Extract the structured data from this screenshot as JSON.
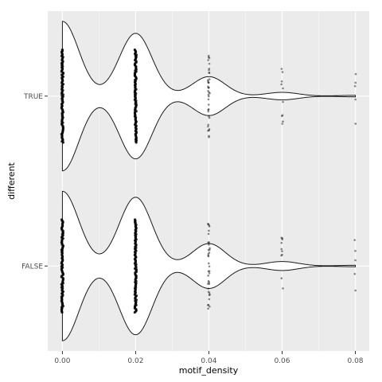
{
  "chart_data": {
    "type": "violin",
    "xlabel": "motif_density",
    "ylabel": "different",
    "xlim": [
      -0.004,
      0.0838
    ],
    "x_ticks": [
      0.0,
      0.02,
      0.04,
      0.06,
      0.08
    ],
    "x_tick_labels": [
      "0.00",
      "0.02",
      "0.04",
      "0.06",
      "0.08"
    ],
    "categories": [
      "TRUE",
      "FALSE"
    ],
    "grid": true,
    "legend": "none",
    "colors": {
      "panel": "#ebebeb",
      "grid": "#ffffff",
      "violin_fill": "#ffffff",
      "violin_line": "#1a1a1a",
      "points": "#000000"
    },
    "violins": [
      {
        "category": "TRUE",
        "density_x": [
          0.0,
          0.02,
          0.04,
          0.06,
          0.08
        ],
        "relative_width": [
          1.0,
          0.84,
          0.26,
          0.05,
          0.01
        ],
        "point_ranges": [
          {
            "x": 0.0,
            "spread": 0.62
          },
          {
            "x": 0.02,
            "spread": 0.62
          },
          {
            "x": 0.04,
            "spread": 0.58
          },
          {
            "x": 0.06,
            "spread": 0.44
          },
          {
            "x": 0.08,
            "spread": 0.4
          }
        ]
      },
      {
        "category": "FALSE",
        "density_x": [
          0.0,
          0.02,
          0.04,
          0.06,
          0.08
        ],
        "relative_width": [
          1.0,
          0.92,
          0.3,
          0.06,
          0.01
        ],
        "point_ranges": [
          {
            "x": 0.0,
            "spread": 0.62
          },
          {
            "x": 0.02,
            "spread": 0.62
          },
          {
            "x": 0.04,
            "spread": 0.58
          },
          {
            "x": 0.06,
            "spread": 0.44
          },
          {
            "x": 0.08,
            "spread": 0.4
          }
        ]
      }
    ]
  }
}
